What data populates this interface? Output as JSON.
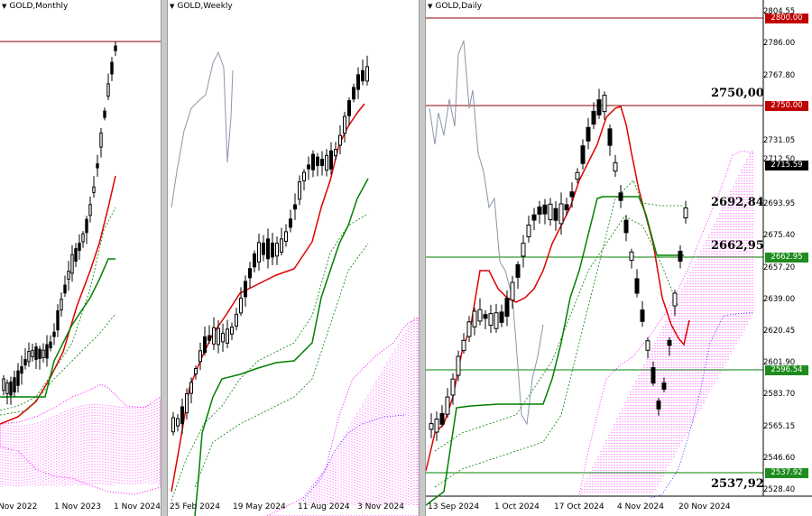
{
  "panels": {
    "monthly": {
      "title": "GOLD,Monthly",
      "x_labels": [
        "Nov 2022",
        "1 Nov 2023",
        "1 Nov 2024"
      ]
    },
    "weekly": {
      "title": "GOLD,Weekly",
      "x_labels": [
        "25 Feb 2024",
        "19 May 2024",
        "11 Aug 2024",
        "3 Nov 2024"
      ]
    },
    "daily": {
      "title": "GOLD,Daily",
      "x_labels": [
        "13 Sep 2024",
        "1 Oct 2024",
        "17 Oct 2024",
        "4 Nov 2024",
        "20 Nov 2024"
      ],
      "y_labels": [
        "2804.55",
        "2786.00",
        "2767.80",
        "2731.05",
        "2712.50",
        "2693.95",
        "2675.40",
        "2657.20",
        "2639.00",
        "2620.45",
        "2601.90",
        "2583.70",
        "2565.15",
        "2546.60",
        "2528.40"
      ],
      "price_tags": {
        "level_2800": "2800.00",
        "level_2750": "2750.00",
        "current": "2715.59",
        "level_2662": "2662.95",
        "level_2596": "2596.54",
        "level_2537": "2537.92"
      },
      "level_annotations": [
        "2750,00",
        "2692,84",
        "2662,95",
        "2537,92"
      ]
    }
  },
  "colors": {
    "candle": "#000000",
    "tenkan": "#e00000",
    "kijun": "#008000",
    "kumo": "#ff00ff",
    "resistance_line": "#8b0000",
    "support_line": "#008000",
    "chikou": "#8a96a8",
    "current_tag": "#000000",
    "red_tag": "#c00000",
    "green_tag": "#1e8c1e"
  }
}
